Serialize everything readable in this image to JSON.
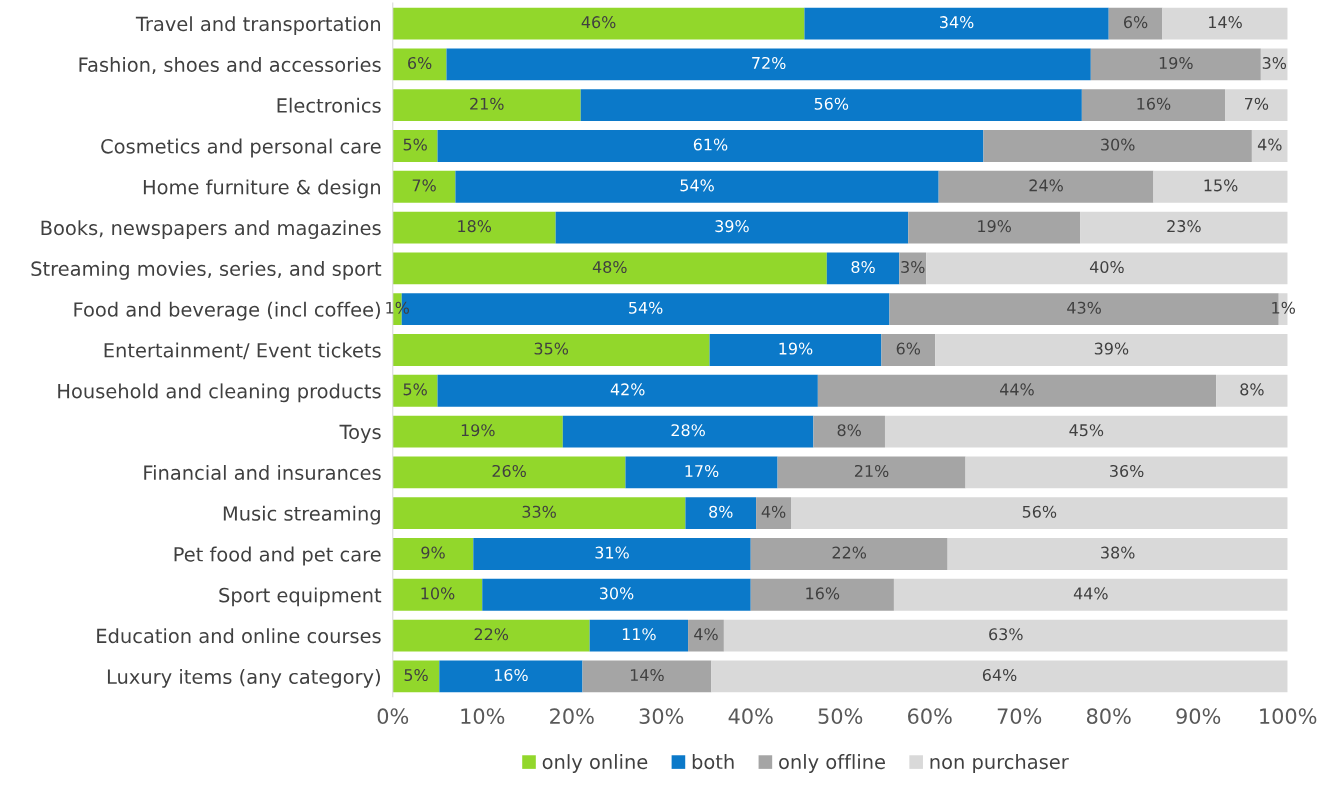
{
  "chart_data": {
    "type": "bar",
    "orientation": "horizontal",
    "stacked": true,
    "categories": [
      "Travel and transportation",
      "Fashion, shoes and accessories",
      "Electronics",
      "Cosmetics and personal care",
      "Home furniture & design",
      "Books, newspapers and magazines",
      "Streaming movies, series, and sport",
      "Food and beverage (incl coffee)",
      "Entertainment/ Event tickets",
      "Household and cleaning products",
      "Toys",
      "Financial and insurances",
      "Music streaming",
      "Pet food and pet care",
      "Sport equipment",
      "Education and online courses",
      "Luxury items (any category)"
    ],
    "series": [
      {
        "name": "only online",
        "color": "#92d72b",
        "values": [
          46,
          6,
          21,
          5,
          7,
          18.2,
          48.5,
          1,
          35.4,
          5,
          19,
          26,
          32.7,
          9,
          10,
          22,
          5.2
        ],
        "value_labels": [
          "46%",
          "6%",
          "21%",
          "5%",
          "7%",
          "18%",
          "48%",
          "1%",
          "35%",
          "5%",
          "19%",
          "26%",
          "33%",
          "9%",
          "10%",
          "22%",
          "5%"
        ]
      },
      {
        "name": "both",
        "color": "#0b79c9",
        "values": [
          34,
          72,
          56,
          61,
          54,
          39.4,
          8.1,
          54.5,
          19.2,
          42.5,
          28,
          17,
          7.9,
          31,
          30,
          11,
          16
        ],
        "value_labels": [
          "34%",
          "72%",
          "56%",
          "61%",
          "54%",
          "39%",
          "8%",
          "54%",
          "19%",
          "42%",
          "28%",
          "17%",
          "8%",
          "31%",
          "30%",
          "11%",
          "16%"
        ]
      },
      {
        "name": "only offline",
        "color": "#a5a5a5",
        "values": [
          6,
          19,
          16,
          30,
          24,
          19.2,
          3,
          43.5,
          6,
          44.5,
          8,
          21,
          3.9,
          22,
          16,
          4,
          14.4
        ],
        "value_labels": [
          "6%",
          "19%",
          "16%",
          "30%",
          "24%",
          "19%",
          "3%",
          "43%",
          "6%",
          "44%",
          "8%",
          "21%",
          "4%",
          "22%",
          "16%",
          "4%",
          "14%"
        ]
      },
      {
        "name": "non purchaser",
        "color": "#d9d9d9",
        "values": [
          14,
          3,
          7,
          4,
          15,
          23.2,
          40.4,
          1,
          39.4,
          8,
          45,
          36,
          55.5,
          38,
          44,
          63,
          64.4
        ],
        "value_labels": [
          "14%",
          "3%",
          "7%",
          "4%",
          "15%",
          "23%",
          "40%",
          "1%",
          "39%",
          "8%",
          "45%",
          "36%",
          "56%",
          "38%",
          "44%",
          "63%",
          "64%"
        ]
      }
    ],
    "xlim": [
      0,
      100
    ],
    "xticks": [
      {
        "value": 0,
        "label": "0%"
      },
      {
        "value": 10,
        "label": "10%"
      },
      {
        "value": 20,
        "label": "20%"
      },
      {
        "value": 30,
        "label": "30%"
      },
      {
        "value": 40,
        "label": "40%"
      },
      {
        "value": 50,
        "label": "50%"
      },
      {
        "value": 60,
        "label": "60%"
      },
      {
        "value": 70,
        "label": "70%"
      },
      {
        "value": 80,
        "label": "80%"
      },
      {
        "value": 90,
        "label": "90%"
      },
      {
        "value": 100,
        "label": "100%"
      }
    ],
    "legend": "bottom",
    "grid": false
  }
}
